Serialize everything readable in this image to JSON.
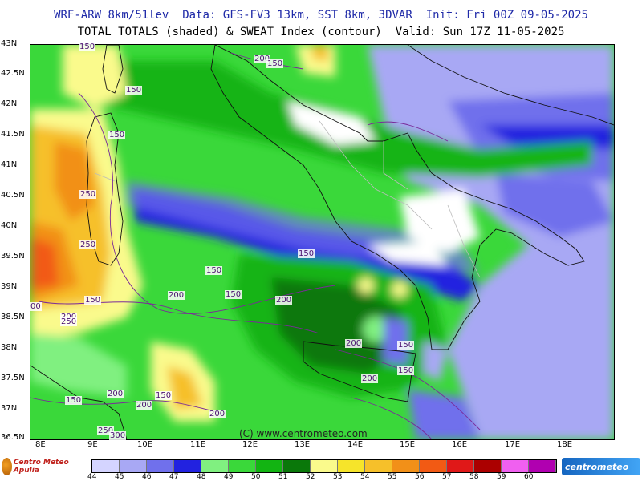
{
  "header": {
    "line1": "WRF-ARW 8km/51lev  Data: GFS-FV3 13km, SST 8km, 3DVAR  Init: Fri 00Z 09-05-2025",
    "line2": "TOTAL TOTALS (shaded) & SWEAT Index (contour)  Valid: Sun 17Z 11-05-2025"
  },
  "map": {
    "lat_labels": [
      "43N",
      "42.5N",
      "42N",
      "41.5N",
      "41N",
      "40.5N",
      "40N",
      "39.5N",
      "39N",
      "38.5N",
      "38N",
      "37.5N",
      "37N",
      "36.5N"
    ],
    "lon_labels": [
      "8E",
      "9E",
      "10E",
      "11E",
      "12E",
      "13E",
      "14E",
      "15E",
      "16E",
      "17E",
      "18E"
    ],
    "copyright": "(C) www.centrometeo.com",
    "contour_labels": [
      {
        "text": "150"
      },
      {
        "text": "200"
      },
      {
        "text": "150"
      },
      {
        "text": "150"
      },
      {
        "text": "150"
      },
      {
        "text": "250"
      },
      {
        "text": "250"
      },
      {
        "text": "150"
      },
      {
        "text": "150"
      },
      {
        "text": "150"
      },
      {
        "text": "200"
      },
      {
        "text": "200"
      },
      {
        "text": "150"
      },
      {
        "text": "200"
      },
      {
        "text": "150"
      },
      {
        "text": "150"
      },
      {
        "text": "200"
      },
      {
        "text": "150"
      },
      {
        "text": "200"
      },
      {
        "text": "200"
      },
      {
        "text": "150"
      },
      {
        "text": "200"
      },
      {
        "text": "250"
      },
      {
        "text": "300"
      },
      {
        "text": "200"
      },
      {
        "text": "250"
      },
      {
        "text": "00"
      }
    ]
  },
  "colorbar": {
    "ticks": [
      "44",
      "45",
      "46",
      "47",
      "48",
      "49",
      "50",
      "51",
      "52",
      "53",
      "54",
      "55",
      "56",
      "57",
      "58",
      "59",
      "60"
    ],
    "colors": [
      "#d4d4ff",
      "#a8a8f4",
      "#7070ec",
      "#2222e0",
      "#80f080",
      "#3ad83a",
      "#12b412",
      "#0a780a",
      "#fafa8c",
      "#f6e42a",
      "#f6c02a",
      "#f29018",
      "#f25a14",
      "#e01818",
      "#ab0000",
      "#f060f0",
      "#b000b0"
    ]
  },
  "logos": {
    "left": "Centro Meteo Apulia",
    "right": "centrometeo"
  }
}
